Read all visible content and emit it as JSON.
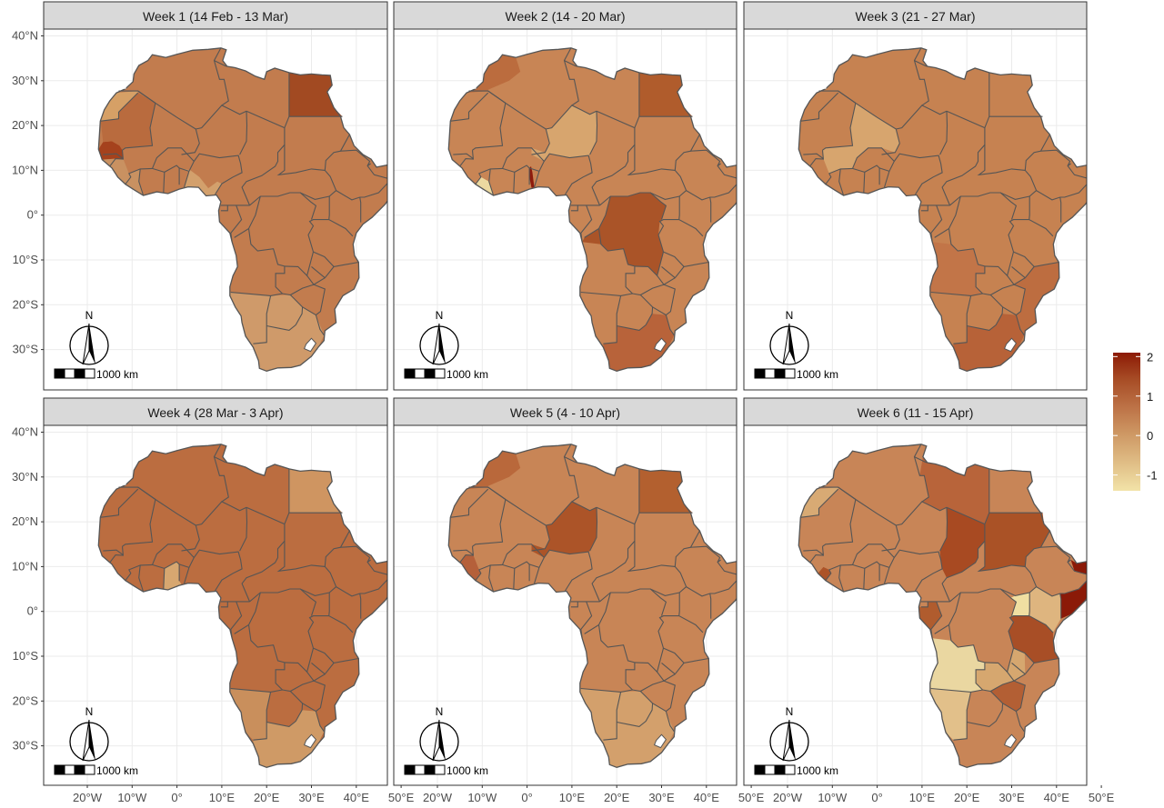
{
  "panels": [
    {
      "title": "Week 1 (14 Feb - 13 Mar)",
      "base": "#c27c4e",
      "regions": [
        {
          "name": "Egypt",
          "color": "#a24a22"
        },
        {
          "name": "Senegal",
          "color": "#a5421d"
        },
        {
          "name": "Mauritania",
          "color": "#b96b3e"
        },
        {
          "name": "Western Sahara",
          "color": "#d6a066"
        },
        {
          "name": "Coastal West Africa",
          "color": "#c99161"
        },
        {
          "name": "Gulf of Guinea",
          "color": "#d3a06c"
        },
        {
          "name": "Southern Africa",
          "color": "#cf9a6a"
        }
      ]
    },
    {
      "title": "Week 2 (14 - 20 Mar)",
      "base": "#c88555",
      "regions": [
        {
          "name": "Egypt",
          "color": "#b05c2c"
        },
        {
          "name": "DR Congo",
          "color": "#aa5428"
        },
        {
          "name": "South Africa",
          "color": "#b8633a"
        },
        {
          "name": "Togo",
          "color": "#8e1b0c"
        },
        {
          "name": "Liberia",
          "color": "#ecd9a0"
        },
        {
          "name": "Niger",
          "color": "#d7a56e"
        },
        {
          "name": "Morocco",
          "color": "#bb6c3e"
        }
      ]
    },
    {
      "title": "Week 3 (21 - 27 Mar)",
      "base": "#c68251",
      "regions": [
        {
          "name": "Mali",
          "color": "#d7a56e"
        },
        {
          "name": "South Africa",
          "color": "#b76238"
        },
        {
          "name": "Mozambique",
          "color": "#bd6d40"
        },
        {
          "name": "Angola",
          "color": "#c27548"
        }
      ]
    },
    {
      "title": "Week 4 (28 Mar - 3 Apr)",
      "base": "#bb6d40",
      "regions": [
        {
          "name": "Egypt",
          "color": "#cf9561"
        },
        {
          "name": "South Africa",
          "color": "#cf9a66"
        },
        {
          "name": "Namibia",
          "color": "#c98f5c"
        },
        {
          "name": "Ghana",
          "color": "#d7a770"
        }
      ]
    },
    {
      "title": "Week 5 (4 - 10 Apr)",
      "base": "#c88556",
      "regions": [
        {
          "name": "Niger",
          "color": "#ac5428"
        },
        {
          "name": "Egypt",
          "color": "#b3602f"
        },
        {
          "name": "Morocco",
          "color": "#b9683b"
        },
        {
          "name": "Southern Africa",
          "color": "#d3a06c"
        },
        {
          "name": "Guinea",
          "color": "#b5603a"
        }
      ]
    },
    {
      "title": "Week 6 (11 - 15 Apr)",
      "base": "#c88557",
      "regions": [
        {
          "name": "Somalia",
          "color": "#8b1a08"
        },
        {
          "name": "Chad",
          "color": "#a84a22"
        },
        {
          "name": "Sudan",
          "color": "#aa5226"
        },
        {
          "name": "Tanzania",
          "color": "#a84e26"
        },
        {
          "name": "Angola",
          "color": "#ead7a1"
        },
        {
          "name": "Namibia",
          "color": "#e2c08a"
        },
        {
          "name": "Uganda",
          "color": "#f0dfa2"
        },
        {
          "name": "Kenya",
          "color": "#deb57f"
        },
        {
          "name": "Zambia",
          "color": "#d6a76f"
        },
        {
          "name": "Zimbabwe",
          "color": "#b35f34"
        },
        {
          "name": "Libya",
          "color": "#b8643a"
        },
        {
          "name": "Western Sahara",
          "color": "#d8aa74"
        },
        {
          "name": "Sierra Leone",
          "color": "#ac5328"
        },
        {
          "name": "Gabon",
          "color": "#b05c2e"
        }
      ]
    }
  ],
  "axes": {
    "y_labels": [
      "40°N",
      "30°N",
      "20°N",
      "10°N",
      "0°",
      "10°S",
      "20°S",
      "30°S"
    ],
    "x_labels": [
      "20°W",
      "10°W",
      "0°",
      "10°E",
      "20°E",
      "30°E",
      "40°E",
      "50°E"
    ]
  },
  "legend": {
    "ticks": [
      "2",
      "1",
      "0",
      "-1"
    ],
    "min": -1.4,
    "max": 2.1,
    "colors": [
      "#f2e3a8",
      "#e0be86",
      "#cf9a66",
      "#bd7347",
      "#a84e27",
      "#8c1a05"
    ]
  },
  "scalebar": {
    "north_label": "N",
    "distance_label": "1000 km"
  }
}
